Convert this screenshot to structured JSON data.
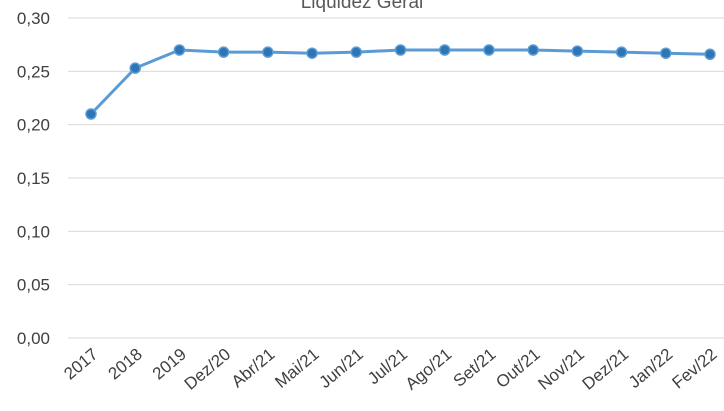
{
  "chart_data": {
    "type": "line",
    "title": "Liquidez Geral",
    "xlabel": "",
    "ylabel": "",
    "categories": [
      "2017",
      "2018",
      "2019",
      "Dez/20",
      "Abr/21",
      "Mai/21",
      "Jun/21",
      "Jul/21",
      "Ago/21",
      "Set/21",
      "Out/21",
      "Nov/21",
      "Dez/21",
      "Jan/22",
      "Fev/22"
    ],
    "series": [
      {
        "values": [
          0.21,
          0.253,
          0.27,
          0.268,
          0.268,
          0.267,
          0.268,
          0.27,
          0.27,
          0.27,
          0.27,
          0.269,
          0.268,
          0.267,
          0.266
        ]
      }
    ],
    "ylim": [
      0,
      0.3
    ],
    "yticks": [
      "0,00",
      "0,05",
      "0,10",
      "0,15",
      "0,20",
      "0,25",
      "0,30"
    ],
    "grid": true,
    "legend": "none",
    "colors": {
      "series": "#5b9bd5",
      "marker": "#2e75b6",
      "grid": "#d9d9d9"
    }
  }
}
